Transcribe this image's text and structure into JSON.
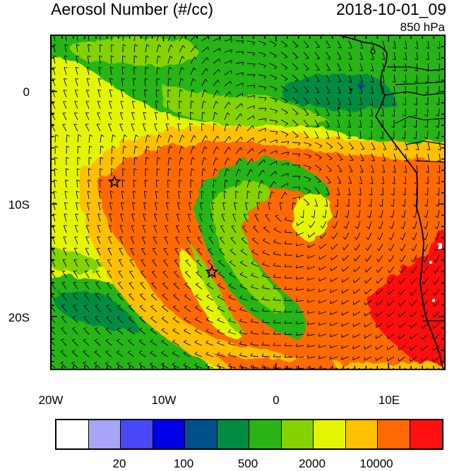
{
  "header": {
    "title": "Aerosol Number (#/cc)",
    "timestamp": "2018-10-01_09",
    "level": "850 hPa"
  },
  "axes": {
    "y_ticks": [
      "0",
      "10S",
      "20S"
    ],
    "x_ticks": [
      "20W",
      "10W",
      "0",
      "10E"
    ]
  },
  "colorbar": {
    "colors": [
      "#ffffff",
      "#a8a4f8",
      "#4848f8",
      "#0000e8",
      "#00508c",
      "#008c40",
      "#28b414",
      "#84d200",
      "#e4f500",
      "#ffc000",
      "#ff6a00",
      "#ff1010"
    ],
    "tick_labels": [
      "20",
      "100",
      "500",
      "2000",
      "10000"
    ]
  },
  "map_colors": {
    "background": "#e4f500",
    "green": "#28b414",
    "dark_green": "#008c40",
    "light_green": "#84d200",
    "orange": "#ffc000",
    "dark_orange": "#ff6a00",
    "red": "#ff1010",
    "blue": "#00508c"
  },
  "markers": {
    "symbol": "star",
    "count": 2
  }
}
